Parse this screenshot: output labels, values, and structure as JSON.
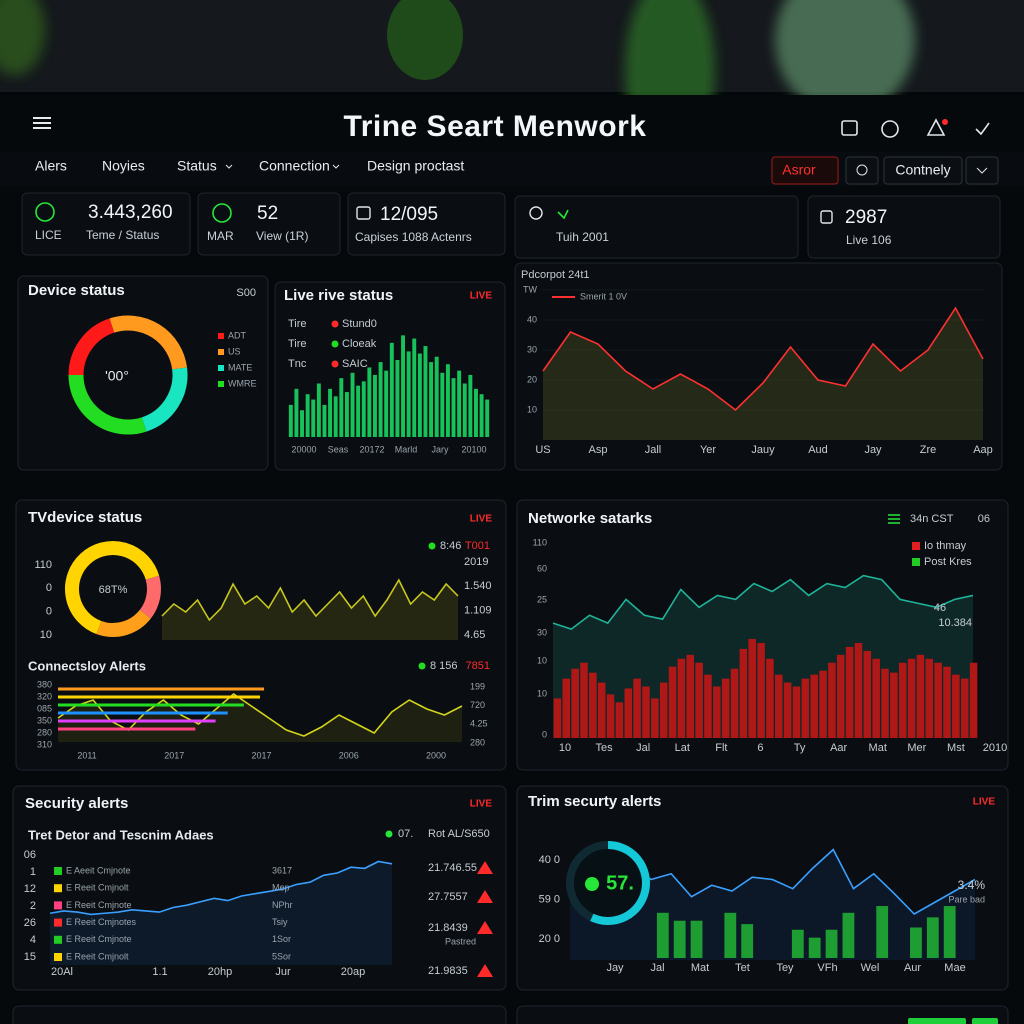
{
  "header": {
    "title": "Trine Seart Menwork"
  },
  "nav": {
    "items": [
      "Alers",
      "Noyies",
      "Status",
      "Connection",
      "Design proctast"
    ],
    "filter": "Asror",
    "mode": "Contnely"
  },
  "stats": [
    {
      "value": "3.443,260",
      "label": "LICE",
      "caption": "Teme / Status"
    },
    {
      "value": "52",
      "label": "MAR",
      "caption": "View (1R)"
    },
    {
      "value": "12/095",
      "caption": "Capises 1088 Actenrs"
    },
    {
      "caption": "Tuih 2001"
    },
    {
      "value": "2987",
      "caption": "Live 106"
    }
  ],
  "device_status": {
    "title": "Device status",
    "badge": "S00",
    "center": "'00°",
    "segments": [
      {
        "name": "ADT",
        "color": "#ff1a1a",
        "value": 20
      },
      {
        "name": "US",
        "color": "#ff9a1f",
        "value": 28
      },
      {
        "name": "MATE",
        "color": "#19e6c1",
        "value": 22
      },
      {
        "name": "WMRE",
        "color": "#22dd22",
        "value": 30
      }
    ]
  },
  "live_status": {
    "title": "Live rive status",
    "badge": "LIVE",
    "legend": [
      {
        "label": "Tire",
        "name": "Stund0",
        "color": "#ff2a2a"
      },
      {
        "label": "Tire",
        "name": "Cloeak",
        "color": "#22dd22"
      },
      {
        "label": "Tnc",
        "name": "SAIC",
        "color": "#ff2a2a"
      }
    ],
    "x_labels": [
      "20000",
      "Seas",
      "20172",
      "Marld",
      "Jary",
      "20100"
    ],
    "ylim": [
      0,
      100
    ],
    "color": "#18c25a",
    "values": [
      30,
      45,
      25,
      40,
      35,
      50,
      30,
      45,
      38,
      55,
      42,
      60,
      48,
      52,
      65,
      58,
      70,
      62,
      88,
      72,
      95,
      80,
      92,
      78,
      85,
      70,
      75,
      60,
      68,
      55,
      62,
      50,
      58,
      45,
      40,
      35
    ]
  },
  "pdcorpot": {
    "title": "Pdcorpot 24t1",
    "legend": "Smerit 1 0V",
    "color": "#ff3030",
    "grid": true,
    "ylim": [
      0,
      50
    ],
    "yticks": [
      {
        "value": 50,
        "label": "TW"
      },
      40,
      30,
      20,
      10
    ],
    "categories": [
      "US",
      null,
      "Asp",
      null,
      "Jall",
      null,
      "Yer",
      null,
      "Jauy",
      null,
      "Aud",
      null,
      "Jay",
      null,
      "Zre",
      null,
      "Aap"
    ],
    "values": [
      23,
      36,
      32,
      23,
      17,
      22,
      17,
      10,
      19,
      31,
      20,
      18,
      32,
      23,
      30,
      44,
      27
    ]
  },
  "tv_device": {
    "title": "TVdevice status",
    "badge": "LIVE",
    "center": "68T%",
    "segments": [
      {
        "color": "#ffd400",
        "value": 65
      },
      {
        "color": "#ff6b6b",
        "value": 15
      },
      {
        "color": "#ff9f1a",
        "value": 20
      }
    ],
    "legend": [
      {
        "name": "8:46",
        "color": "#22dd22"
      },
      {
        "name": "T001",
        "color": "#ff2a2a"
      }
    ],
    "left_labels": [
      "110",
      "0",
      "0",
      "10"
    ],
    "right_labels": [
      "2019",
      "1.540",
      "1.109",
      "4.65"
    ],
    "ylim": [
      0,
      100
    ],
    "color": "#c8c81e",
    "values": [
      30,
      45,
      35,
      50,
      25,
      40,
      70,
      45,
      55,
      40,
      65,
      35,
      50,
      30,
      45,
      60,
      40,
      55,
      30,
      50,
      75,
      45,
      60,
      50,
      70,
      55
    ]
  },
  "connect_alerts": {
    "title": "Connectsloy Alerts",
    "legend": [
      {
        "name": "8 156",
        "color": "#22dd22"
      },
      {
        "name": "7851",
        "color": "#ff2a2a"
      }
    ],
    "left_labels": [
      "380",
      "320",
      "085",
      "350",
      "280",
      "310"
    ],
    "right_labels": [
      "199",
      "720",
      "4.25",
      "280"
    ],
    "x_labels": [
      "2011",
      "2017",
      "2017",
      "2006",
      "2000"
    ],
    "xlim": [
      0,
      100
    ],
    "bars": [
      {
        "color": "#ff9a1f",
        "value": 51
      },
      {
        "color": "#ffd400",
        "value": 50
      },
      {
        "color": "#22dd22",
        "value": 46
      },
      {
        "color": "#1e90ff",
        "value": 42
      },
      {
        "color": "#e040fb",
        "value": 39
      },
      {
        "color": "#ff4081",
        "value": 34
      }
    ],
    "ylim": [
      0,
      100
    ],
    "color": "#d4d41a",
    "values": [
      40,
      60,
      70,
      35,
      20,
      50,
      70,
      45,
      30,
      55,
      80,
      60,
      40,
      20,
      10,
      25,
      45,
      30,
      15,
      50,
      70,
      55,
      45,
      60
    ]
  },
  "network": {
    "title": "Networke satarks",
    "status": "34n CST",
    "count": "06",
    "legend": [
      {
        "name": "Io thmay",
        "color": "#e02020"
      },
      {
        "name": "Post Kres",
        "color": "#22cc22"
      }
    ],
    "y_labels": [
      "110",
      "60",
      "25",
      "30",
      "10",
      "10",
      "0"
    ],
    "x_labels": [
      "10",
      "Tes",
      "Jal",
      "Lat",
      "Flt",
      "6",
      "Ty",
      "Aar",
      "Mat",
      "Mer",
      "Mst",
      "2010"
    ],
    "annotation": [
      "46",
      "10.384"
    ],
    "ylim": [
      0,
      100
    ],
    "line": {
      "color": "#1fb39a",
      "values": [
        58,
        55,
        62,
        58,
        70,
        62,
        60,
        75,
        66,
        72,
        70,
        78,
        74,
        80,
        72,
        78,
        76,
        82,
        80,
        70,
        68,
        66,
        70,
        72
      ]
    },
    "bars": {
      "color": "#b01818",
      "values": [
        20,
        30,
        35,
        38,
        33,
        28,
        22,
        18,
        25,
        30,
        26,
        20,
        28,
        36,
        40,
        42,
        38,
        32,
        26,
        30,
        35,
        45,
        50,
        48,
        40,
        32,
        28,
        26,
        30,
        32,
        34,
        38,
        42,
        46,
        48,
        44,
        40,
        35,
        33,
        38,
        40,
        42,
        40,
        38,
        36,
        32,
        30,
        38
      ]
    }
  },
  "security_alerts": {
    "title": "Security alerts",
    "badge": "LIVE",
    "subtitle": "Tret Detor and Tescnim Adaes",
    "indicator": "07.",
    "side_title": "Rot AL/S650",
    "y_labels": [
      "06",
      "1",
      "12",
      "2",
      "26",
      "4",
      "15"
    ],
    "rows": [
      {
        "color": "#22cc22",
        "name": "E Aeeit Cmjnote",
        "tag": "3617"
      },
      {
        "color": "#ffd400",
        "name": "E Reeit Cmjnolt",
        "tag": "Mep"
      },
      {
        "color": "#ff4081",
        "name": "E Reeit Cmjnote",
        "tag": "NPhr"
      },
      {
        "color": "#ff2a2a",
        "name": "E Reeit Cmjnotes",
        "tag": "Tsiy"
      },
      {
        "color": "#22cc22",
        "name": "E Reeit Cmjnote",
        "tag": "1Sor"
      },
      {
        "color": "#ffd400",
        "name": "E Reeit Cmjnolt",
        "tag": "5Sor"
      }
    ],
    "alerts": [
      "21.746.55",
      "27.7557",
      "21.8439",
      "21.9835"
    ],
    "alert_note": "Pastred",
    "x_labels": [
      "20Al",
      "1.1",
      "20hp",
      "Jur",
      "20ap"
    ],
    "ylim": [
      0,
      100
    ],
    "color": "#3aa0ff",
    "values": [
      45,
      47,
      46,
      44,
      45,
      46,
      48,
      47,
      46,
      50,
      52,
      55,
      58,
      56,
      60,
      62,
      64,
      66,
      70,
      72,
      78,
      80,
      85,
      84,
      90,
      88
    ]
  },
  "trim_alerts": {
    "title": "Trim securty alerts",
    "badge": "LIVE",
    "gauge": {
      "label": "57.",
      "value": 57,
      "color": "#14c8d8"
    },
    "y_labels": [
      "40 0",
      "59 0",
      "20 0"
    ],
    "x_labels": [
      "Jay",
      "Jal",
      "Mat",
      "Tet",
      "Tey",
      "VFh",
      "Wel",
      "Aur",
      "Mae"
    ],
    "stat": "3.4%",
    "stat_note": "Pare bad",
    "ylim": [
      0,
      100
    ],
    "line": {
      "color": "#3aa0ff",
      "values": [
        60,
        68,
        90,
        84,
        70,
        75,
        55,
        65,
        60,
        72,
        70,
        62,
        80,
        96,
        62,
        75,
        58,
        40,
        50,
        60,
        70
      ]
    },
    "bars": {
      "color": "#22cc22",
      "values": [
        0,
        0,
        0,
        0,
        0,
        40,
        33,
        33,
        0,
        40,
        30,
        0,
        0,
        25,
        18,
        25,
        40,
        0,
        46,
        0,
        27,
        36,
        46,
        0
      ]
    }
  }
}
